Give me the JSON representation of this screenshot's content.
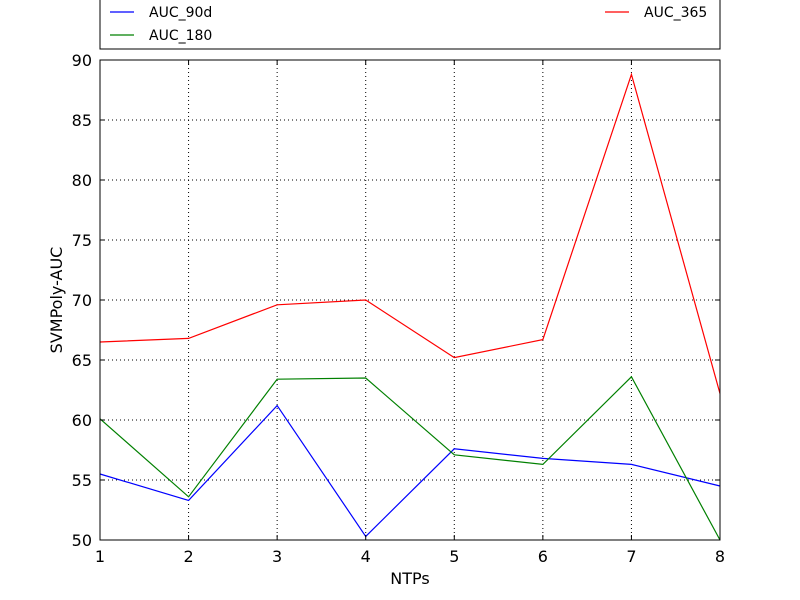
{
  "chart_data": {
    "type": "line",
    "xlabel": "NTPs",
    "ylabel": "SVMPoly-AUC",
    "xlim": [
      1,
      8
    ],
    "ylim": [
      50,
      90
    ],
    "x": [
      1,
      2,
      3,
      4,
      5,
      6,
      7,
      8
    ],
    "xticks": [
      "1",
      "2",
      "3",
      "4",
      "5",
      "6",
      "7",
      "8"
    ],
    "yticks": [
      "50",
      "55",
      "60",
      "65",
      "70",
      "75",
      "80",
      "85",
      "90"
    ],
    "grid": true,
    "legend_position": "top (above plot, two columns)",
    "series": [
      {
        "name": "AUC_90d",
        "color": "#0000ff",
        "values": [
          55.5,
          53.3,
          61.2,
          50.3,
          57.6,
          56.8,
          56.3,
          54.5
        ]
      },
      {
        "name": "AUC_180",
        "color": "#008000",
        "values": [
          60.1,
          53.6,
          63.4,
          63.5,
          57.1,
          56.3,
          63.6,
          50.0
        ]
      },
      {
        "name": "AUC_365",
        "color": "#ff0000",
        "values": [
          66.5,
          66.8,
          69.6,
          70.0,
          65.2,
          66.7,
          88.8,
          62.2
        ]
      }
    ]
  }
}
